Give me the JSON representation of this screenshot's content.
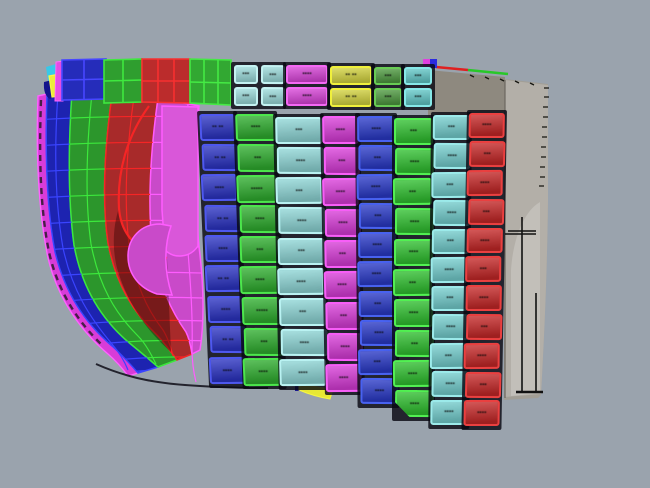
{
  "scene": {
    "background": "#9aa3ad",
    "plate_labels_note": "tiny black plate ID stencils (illegible at this resolution)"
  },
  "wireframe": {
    "outer_strip": {
      "name": "shell-edge-strip",
      "fill": "#d83cd8",
      "stroke": "#ff62ff"
    },
    "strakes": [
      {
        "name": "bow-strake-blue",
        "fill": "#1d23b0",
        "stroke": "#3a44ff"
      },
      {
        "name": "bow-strake-green",
        "fill": "#2c962c",
        "stroke": "#3ce83c"
      },
      {
        "name": "bow-strake-red",
        "fill": "#a82a2a",
        "stroke": "#f52525"
      },
      {
        "name": "bow-strake-magenta",
        "fill": "#c94ac9",
        "stroke": "#ff5cff"
      }
    ],
    "accents": {
      "magenta_upper_plate": "#d957d9",
      "magenta_bulge": "#c94ac9",
      "maroon_shadow": "rgba(40,0,0,0.38)",
      "seam_dash_color": "#151515"
    }
  },
  "top_row": {
    "wire_blocks": [
      {
        "name": "top-block-blue",
        "fill": "#252cba",
        "stroke": "#4747ff"
      },
      {
        "name": "top-block-green",
        "fill": "#2f9e2f",
        "stroke": "#3fe83f"
      },
      {
        "name": "top-block-red",
        "fill": "#bb2c2c",
        "stroke": "#f73030"
      },
      {
        "name": "top-block-green2",
        "fill": "#32a832",
        "stroke": "#44ea44"
      }
    ],
    "corner_bits": {
      "cyan": "#38c8e8",
      "yellow": "#ecec3c",
      "navy": "#14148c",
      "magenta_sliver": "#e44ce4"
    },
    "pairs": [
      {
        "name": "sheer-strake-cyan",
        "fill": "#9cdcdc",
        "border": "#c4f2f2",
        "labels": [
          "▪▪▪",
          "▪▪▪",
          "▪▪▪",
          "▪▪▪"
        ]
      },
      {
        "name": "sheer-strake-magenta",
        "fill": "#d844d8",
        "border": "#f468f4",
        "labels": [
          "▪▪▪▪",
          "▪▪▪▪"
        ]
      },
      {
        "name": "sheer-strake-yellow",
        "fill": "#d4d440",
        "border": "#f0f03c",
        "labels": [
          "▪▪ ▪▪",
          "▪▪ ▪▪"
        ]
      },
      {
        "name": "sheer-strake-green",
        "fill": "#4e9a40",
        "border": "#68cc54",
        "labels": [
          "▪▪▪",
          "▪▪▪"
        ]
      },
      {
        "name": "sheer-strake-cyan-2",
        "fill": "#62c8c8",
        "border": "#86e8e8",
        "labels": [
          "▪▪▪",
          "▪▪▪"
        ]
      }
    ]
  },
  "plate_columns": [
    {
      "name": "strake-1-blue",
      "fill": "#2c34c4",
      "border": "#4e58ee",
      "labels": [
        "▪▪ ▪▪",
        "▪▪ ▪▪",
        "▪▪▪▪",
        "▪▪ ▪▪",
        "▪▪▪▪",
        "▪▪ ▪▪",
        "▪▪▪▪",
        "▪▪ ▪▪",
        "▪▪▪▪"
      ]
    },
    {
      "name": "strake-2-green",
      "fill": "#2fae2f",
      "border": "#4ce64c",
      "labels": [
        "▪▪▪▪",
        "▪▪▪",
        "▪▪▪▪▪",
        "▪▪▪▪",
        "▪▪▪",
        "▪▪▪▪",
        "▪▪▪▪▪",
        "▪▪▪",
        "▪▪▪▪"
      ]
    },
    {
      "name": "strake-3-cyan",
      "fill": "#8ed6d6",
      "border": "#baf2f2",
      "labels": [
        "▪▪▪",
        "▪▪▪▪",
        "▪▪▪",
        "▪▪▪▪",
        "▪▪▪",
        "▪▪▪▪",
        "▪▪▪",
        "▪▪▪▪",
        "▪▪▪▪"
      ]
    },
    {
      "name": "strake-4-magenta",
      "fill": "#d83cd8",
      "border": "#f75ef7",
      "labels": [
        "▪▪▪▪",
        "▪▪▪",
        "▪▪▪▪",
        "▪▪▪▪",
        "▪▪▪",
        "▪▪▪▪",
        "▪▪▪",
        "▪▪▪▪",
        "▪▪▪▪"
      ]
    },
    {
      "name": "strake-5-blue",
      "fill": "#2a3ac8",
      "border": "#4862f0",
      "labels": [
        "▪▪▪▪",
        "▪▪▪",
        "▪▪▪▪",
        "▪▪▪",
        "▪▪▪▪",
        "▪▪▪▪",
        "▪▪▪",
        "▪▪▪▪",
        "▪▪▪",
        "▪▪▪▪"
      ]
    },
    {
      "name": "strake-6-green",
      "fill": "#30c030",
      "border": "#52f052",
      "labels": [
        "▪▪▪",
        "▪▪▪▪",
        "▪▪▪",
        "▪▪▪▪",
        "▪▪▪▪",
        "▪▪▪",
        "▪▪▪▪",
        "▪▪▪",
        "▪▪▪▪",
        "▪▪▪▪"
      ]
    },
    {
      "name": "strake-7-cyan",
      "fill": "#74cece",
      "border": "#9ceaea",
      "labels": [
        "▪▪▪",
        "▪▪▪▪",
        "▪▪▪",
        "▪▪▪▪",
        "▪▪▪",
        "▪▪▪▪",
        "▪▪▪",
        "▪▪▪▪",
        "▪▪▪",
        "▪▪▪▪",
        "▪▪▪▪"
      ]
    },
    {
      "name": "strake-8-red",
      "fill": "#c62828",
      "border": "#ea4040",
      "labels": [
        "▪▪▪▪",
        "▪▪▪",
        "▪▪▪▪",
        "▪▪▪",
        "▪▪▪▪",
        "▪▪▪",
        "▪▪▪▪",
        "▪▪▪",
        "▪▪▪▪",
        "▪▪▪",
        "▪▪▪▪"
      ]
    }
  ],
  "stern": {
    "base": "#a29e95",
    "side": "#b3afa8",
    "panel": "#c2bfb9",
    "dark_face": "#8e897f",
    "line_color": "#111111",
    "accent_red": "#e02020",
    "accent_green": "#28c828"
  },
  "bottom_accents": {
    "yellow_wedge": "#e8e834",
    "yellow_stroke": "#f6f642",
    "navy_bit": "#1a1a90"
  }
}
